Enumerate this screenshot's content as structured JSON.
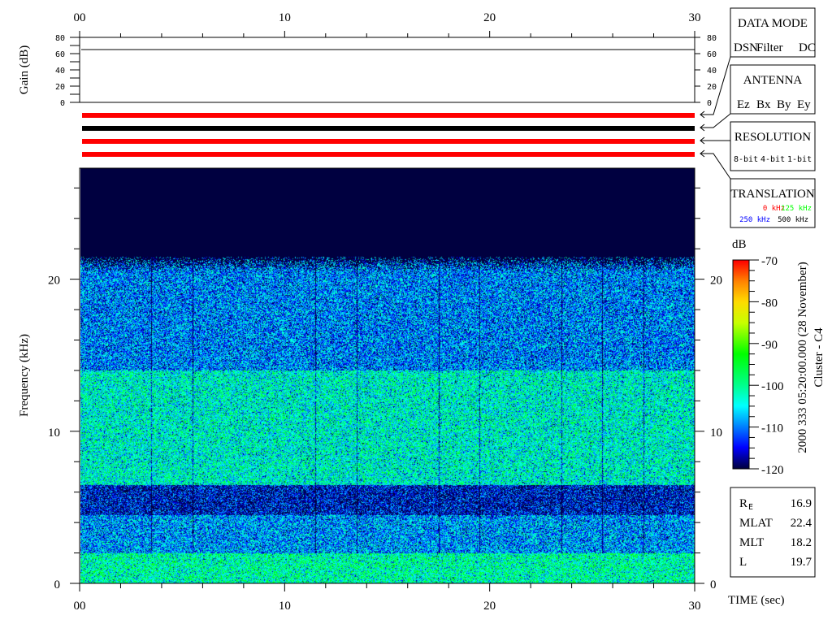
{
  "chart_data": {
    "type": "heatmap",
    "title": "",
    "xlabel": "TIME (sec)",
    "ylabel": "Frequency (kHz)",
    "xlim": [
      0,
      30
    ],
    "ylim": [
      0,
      27.3
    ],
    "x_ticks": [
      "00",
      "10",
      "20",
      "30"
    ],
    "y_ticks": [
      "0",
      "10",
      "20"
    ],
    "grid": false,
    "colorbar": {
      "label": "dB",
      "range": [
        -120,
        -70
      ],
      "ticks": [
        "-70",
        "-80",
        "-90",
        "-100",
        "-110",
        "-120"
      ],
      "colormap": "jet"
    },
    "spectral_profile_khz_db": [
      {
        "freq_range": [
          0,
          2
        ],
        "level_db": -100
      },
      {
        "freq_range": [
          2,
          4.5
        ],
        "level_db": -108
      },
      {
        "freq_range": [
          4.5,
          6.5
        ],
        "level_db": -115
      },
      {
        "freq_range": [
          6.5,
          14
        ],
        "level_db": -102
      },
      {
        "freq_range": [
          14,
          21.5
        ],
        "level_db": -109
      },
      {
        "freq_range": [
          21.5,
          27.3
        ],
        "level_db": -120
      }
    ],
    "vertical_dropouts_sec": [
      3.5,
      5.5,
      11.5,
      13.5,
      17.5,
      19.5,
      23.5,
      25.5,
      27.5
    ],
    "gain_panel": {
      "ylabel": "Gain (dB)",
      "y_ticks": [
        "80",
        "60",
        "40",
        "20",
        "0"
      ],
      "ylim": [
        0,
        80
      ],
      "gain_db": 65
    }
  },
  "indicator_bars": [
    {
      "label": "data-mode",
      "color": "#ff0000"
    },
    {
      "label": "antenna",
      "color": "#000000"
    },
    {
      "label": "resolution",
      "color": "#ff0000"
    },
    {
      "label": "translation",
      "color": "#ff0000"
    }
  ],
  "legend": {
    "data_mode": {
      "title": "DATA MODE",
      "items": [
        {
          "text": "DSN",
          "color": "#ff0000"
        },
        {
          "text": "Filter",
          "color": "#00ff00"
        },
        {
          "text": "DC",
          "color": "#0000ff"
        }
      ]
    },
    "antenna": {
      "title": "ANTENNA",
      "items": [
        {
          "text": "Ez",
          "color": "#ff0000"
        },
        {
          "text": "Bx",
          "color": "#00ff00"
        },
        {
          "text": "By",
          "color": "#0000ff"
        },
        {
          "text": "Ey",
          "color": "#000000"
        }
      ]
    },
    "resolution": {
      "title": "RESOLUTION",
      "items": [
        {
          "text": "8-bit",
          "color": "#ff0000"
        },
        {
          "text": "4-bit",
          "color": "#00ff00"
        },
        {
          "text": "1-bit",
          "color": "#0000ff"
        }
      ]
    },
    "translation": {
      "title": "TRANSLATION",
      "items": [
        {
          "text": "0 kHz",
          "color": "#ff0000"
        },
        {
          "text": "125 kHz",
          "color": "#00ff00"
        },
        {
          "text": "250 kHz",
          "color": "#0000ff"
        },
        {
          "text": "500 kHz",
          "color": "#000000"
        }
      ]
    }
  },
  "timestamp": "2000 333 05:20:00.000 (28 November)",
  "spacecraft": "Cluster - C4",
  "ephemeris": [
    {
      "label": "R",
      "sub": "E",
      "value": "16.9"
    },
    {
      "label": "MLAT",
      "sub": "",
      "value": "22.4"
    },
    {
      "label": "MLT",
      "sub": "",
      "value": "18.2"
    },
    {
      "label": "L",
      "sub": "",
      "value": "19.7"
    }
  ]
}
